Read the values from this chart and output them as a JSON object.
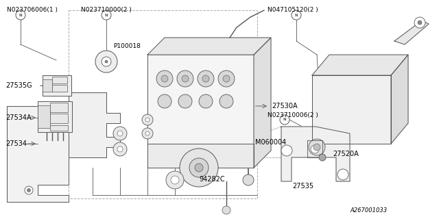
{
  "background_color": "#ffffff",
  "line_color": "#555555",
  "text_color": "#000000",
  "font_size": 7.0,
  "lw": 0.7,
  "labels": {
    "N023706006": "N023706006(1 )",
    "N023710000": "N023710000(2 )",
    "P100018": "P100018",
    "27535G": "27535G",
    "27534A": "27534A",
    "27534": "27534",
    "27530A": "27530A",
    "N047105120": "N047105120(2 )",
    "27520A": "27520A",
    "N023710006": "N023710006(2 )",
    "M060004": "M060004",
    "94282C": "94282C",
    "27535": "27535",
    "A267001033": "A267001033"
  }
}
